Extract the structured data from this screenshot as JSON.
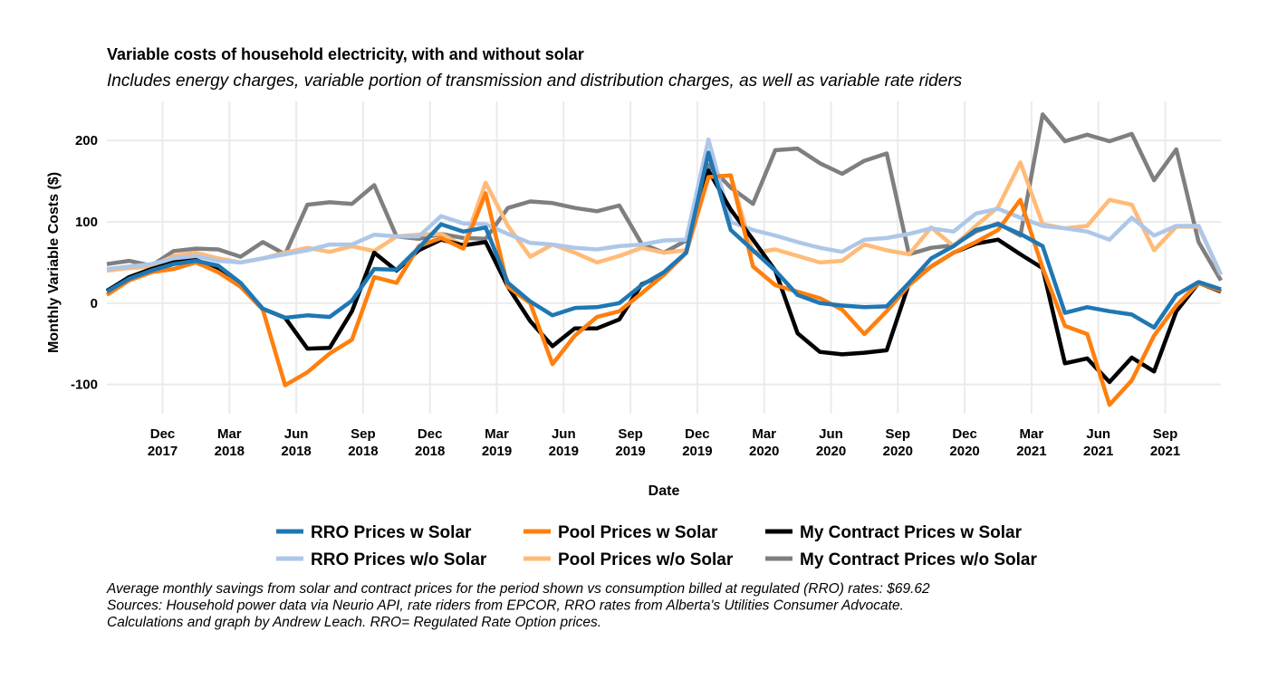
{
  "chart_data": {
    "type": "line",
    "title": "Variable costs of household electricity, with and without solar",
    "subtitle": "Includes energy charges, variable portion of transmission and distribution charges, as well as variable rate riders",
    "x_label": "Date",
    "y_label": "Monthly Variable Costs ($)",
    "x": [
      "2017-09",
      "2017-10",
      "2017-11",
      "2017-12",
      "2018-01",
      "2018-02",
      "2018-03",
      "2018-04",
      "2018-05",
      "2018-06",
      "2018-07",
      "2018-08",
      "2018-09",
      "2018-10",
      "2018-11",
      "2018-12",
      "2019-01",
      "2019-02",
      "2019-03",
      "2019-04",
      "2019-05",
      "2019-06",
      "2019-07",
      "2019-08",
      "2019-09",
      "2019-10",
      "2019-11",
      "2019-12",
      "2020-01",
      "2020-02",
      "2020-03",
      "2020-04",
      "2020-05",
      "2020-06",
      "2020-07",
      "2020-08",
      "2020-09",
      "2020-10",
      "2020-11",
      "2020-12",
      "2021-01",
      "2021-02",
      "2021-03",
      "2021-04",
      "2021-05",
      "2021-06",
      "2021-07",
      "2021-08",
      "2021-09",
      "2021-10",
      "2021-11"
    ],
    "xticks": [
      {
        "value": "2017-12",
        "label": "Dec 2017"
      },
      {
        "value": "2018-03",
        "label": "Mar 2018"
      },
      {
        "value": "2018-06",
        "label": "Jun 2018"
      },
      {
        "value": "2018-09",
        "label": "Sep 2018"
      },
      {
        "value": "2018-12",
        "label": "Dec 2018"
      },
      {
        "value": "2019-03",
        "label": "Mar 2019"
      },
      {
        "value": "2019-06",
        "label": "Jun 2019"
      },
      {
        "value": "2019-09",
        "label": "Sep 2019"
      },
      {
        "value": "2019-12",
        "label": "Dec 2019"
      },
      {
        "value": "2020-03",
        "label": "Mar 2020"
      },
      {
        "value": "2020-06",
        "label": "Jun 2020"
      },
      {
        "value": "2020-09",
        "label": "Sep 2020"
      },
      {
        "value": "2020-12",
        "label": "Dec 2020"
      },
      {
        "value": "2021-03",
        "label": "Mar 2021"
      },
      {
        "value": "2021-06",
        "label": "Jun 2021"
      },
      {
        "value": "2021-09",
        "label": "Sep 2021"
      }
    ],
    "ylim": [
      -136,
      248
    ],
    "yticks": [
      -100,
      0,
      100,
      200
    ],
    "grid": true,
    "legend_position": "bottom",
    "series": [
      {
        "name": "RRO Prices w Solar",
        "color": "#1f77b4",
        "values": [
          14,
          30,
          40,
          48,
          52,
          46,
          25,
          -7,
          -18,
          -15,
          -17,
          3,
          42,
          41,
          68,
          97,
          88,
          93,
          25,
          2,
          -15,
          -6,
          -5,
          0,
          22,
          38,
          62,
          185,
          90,
          65,
          40,
          10,
          0,
          -3,
          -5,
          -4,
          25,
          55,
          70,
          90,
          97,
          85,
          70,
          -12,
          -5,
          -10,
          -14,
          -30,
          10,
          26,
          17
        ]
      },
      {
        "name": "Pool Prices w Solar",
        "color": "#ff7f0e",
        "values": [
          10,
          28,
          38,
          42,
          50,
          38,
          20,
          -8,
          -101,
          -85,
          -62,
          -45,
          32,
          25,
          70,
          80,
          67,
          135,
          20,
          0,
          -75,
          -40,
          -17,
          -10,
          12,
          35,
          62,
          155,
          157,
          45,
          22,
          14,
          6,
          -8,
          -38,
          -10,
          22,
          45,
          62,
          75,
          90,
          127,
          43,
          -28,
          -38,
          -125,
          -95,
          -40,
          -3,
          25,
          15
        ]
      },
      {
        "name": "My Contract Prices w Solar",
        "color": "#000000",
        "values": [
          15,
          32,
          42,
          50,
          53,
          43,
          22,
          -7,
          -18,
          -56,
          -55,
          -10,
          62,
          40,
          65,
          78,
          71,
          75,
          20,
          -22,
          -53,
          -31,
          -31,
          -20,
          23,
          35,
          62,
          163,
          115,
          78,
          40,
          -37,
          -60,
          -63,
          -61,
          -58,
          24,
          45,
          62,
          73,
          78,
          60,
          43,
          -74,
          -68,
          -97,
          -67,
          -84,
          -10,
          25,
          14
        ]
      },
      {
        "name": "RRO Prices w/o Solar",
        "color": "#aec7e8",
        "values": [
          42,
          45,
          48,
          55,
          58,
          52,
          50,
          55,
          60,
          65,
          72,
          72,
          84,
          82,
          82,
          107,
          98,
          97,
          85,
          74,
          72,
          68,
          66,
          70,
          72,
          77,
          78,
          201,
          100,
          90,
          83,
          75,
          68,
          63,
          78,
          80,
          85,
          92,
          88,
          110,
          116,
          105,
          95,
          92,
          88,
          78,
          105,
          83,
          95,
          95,
          35
        ]
      },
      {
        "name": "Pool Prices w/o Solar",
        "color": "#ffbb78",
        "values": [
          40,
          43,
          45,
          58,
          62,
          55,
          50,
          55,
          62,
          68,
          63,
          70,
          64,
          82,
          84,
          85,
          70,
          148,
          95,
          57,
          72,
          62,
          50,
          58,
          68,
          62,
          65,
          155,
          157,
          62,
          66,
          58,
          50,
          52,
          72,
          65,
          60,
          93,
          70,
          95,
          118,
          173,
          97,
          92,
          95,
          127,
          121,
          65,
          94,
          94,
          35
        ]
      },
      {
        "name": "My Contract Prices w/o Solar",
        "color": "#7f7f7f",
        "values": [
          48,
          52,
          46,
          64,
          67,
          66,
          57,
          75,
          60,
          121,
          124,
          122,
          145,
          82,
          79,
          85,
          80,
          79,
          117,
          125,
          123,
          117,
          113,
          120,
          73,
          62,
          77,
          170,
          142,
          122,
          188,
          190,
          172,
          159,
          175,
          184,
          60,
          68,
          71,
          88,
          98,
          83,
          232,
          199,
          207,
          199,
          208,
          151,
          189,
          75,
          28
        ]
      }
    ],
    "notes": [
      "Average monthly savings from solar and contract prices for the period shown vs consumption billed at regulated (RRO) rates: $69.62",
      "Sources: Household power data via Neurio API, rate riders from EPCOR, RRO rates from Alberta's Utilities Consumer Advocate.",
      "Calculations and graph by Andrew Leach. RRO= Regulated Rate Option prices."
    ]
  }
}
